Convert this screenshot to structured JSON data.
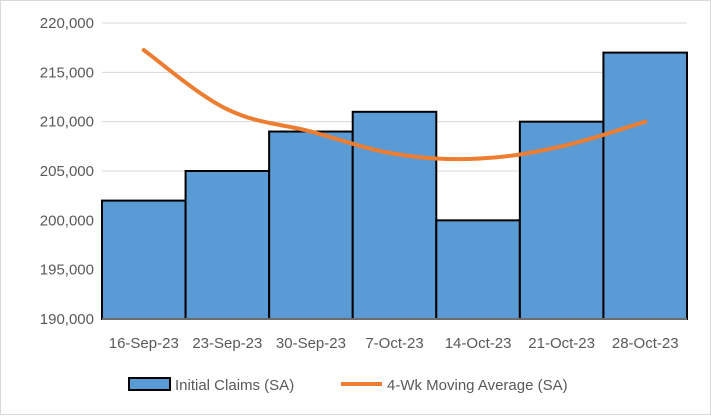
{
  "chart_data": {
    "type": "bar",
    "title": "",
    "xlabel": "",
    "ylabel": "",
    "categories": [
      "16-Sep-23",
      "23-Sep-23",
      "30-Sep-23",
      "7-Oct-23",
      "14-Oct-23",
      "21-Oct-23",
      "28-Oct-23"
    ],
    "series": [
      {
        "name": "Initial Claims (SA)",
        "type": "bar",
        "color": "#5b9bd5",
        "values": [
          202000,
          205000,
          209000,
          211000,
          200000,
          210000,
          217000
        ]
      },
      {
        "name": "4-Wk Moving Average (SA)",
        "type": "line",
        "color": "#ed7d31",
        "values": [
          217250,
          211250,
          209000,
          206750,
          206250,
          207500,
          210000
        ]
      }
    ],
    "ylim": [
      190000,
      220000
    ],
    "yticks": [
      190000,
      195000,
      200000,
      205000,
      210000,
      215000,
      220000
    ],
    "ytick_labels": [
      "190,000",
      "195,000",
      "200,000",
      "205,000",
      "210,000",
      "215,000",
      "220,000"
    ],
    "grid": true,
    "legend_position": "bottom"
  }
}
